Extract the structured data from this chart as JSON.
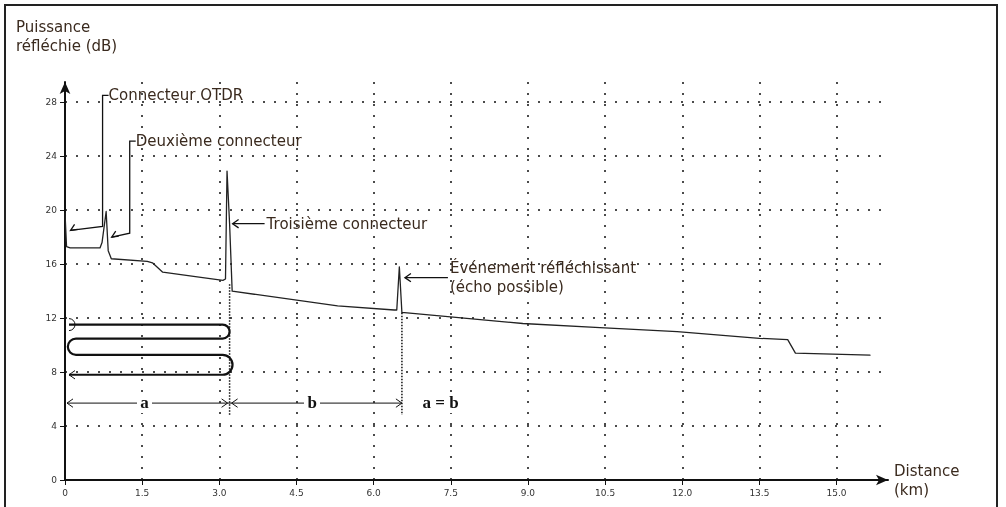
{
  "chart_data": {
    "type": "line",
    "xlabel": "Distance (km)",
    "ylabel": "Puissance réfléchie (dB)",
    "x": [
      0,
      0.03,
      0.1,
      0.68,
      0.72,
      0.8,
      0.84,
      0.9,
      1.6,
      1.7,
      1.9,
      2.5,
      3.07,
      3.12,
      3.15,
      3.2,
      3.25,
      5.3,
      6.4,
      6.45,
      6.5,
      6.55,
      6.6,
      8.9,
      10.4,
      11.9,
      13.5,
      14.05,
      14.2,
      15.65
    ],
    "series": [
      {
        "color": "#222222",
        "values": [
          19.8,
          17.3,
          17.2,
          17.2,
          17.6,
          19.9,
          17.0,
          16.4,
          16.2,
          16.1,
          15.4,
          15.1,
          14.8,
          14.9,
          22.9,
          19.0,
          14.0,
          12.9,
          12.6,
          12.6,
          15.8,
          12.4,
          12.4,
          11.6,
          11.3,
          11.0,
          10.5,
          10.4,
          9.4,
          9.25
        ]
      }
    ],
    "xlim": [
      0,
      16
    ],
    "xticks": [
      {
        "value": 0,
        "label": "0"
      },
      1.5,
      {
        "value": 3,
        "label": "3.0"
      },
      4.5,
      {
        "value": 6,
        "label": "6.0"
      },
      7.5,
      {
        "value": 9,
        "label": "9.0"
      },
      10.5,
      {
        "value": 12,
        "label": "12.0"
      },
      13.5,
      {
        "value": 15,
        "label": "15.0"
      }
    ],
    "ylim": [
      0,
      29.5
    ],
    "yticks": [
      0,
      4,
      8,
      12,
      16,
      20,
      24,
      28
    ],
    "grid": true,
    "marker": "none",
    "line_style": "solid",
    "annotations": [
      {
        "text": "Connecteur OTDR",
        "x": 0.05,
        "y": 18.5
      },
      {
        "text": "Deuxième connecteur",
        "x": 0.85,
        "y": 18
      },
      {
        "text": "Troisième connecteur",
        "x": 3.2,
        "y": 19
      },
      {
        "text": "Événement réfléchissant (écho possible)",
        "x": 6.55,
        "y": 15
      },
      {
        "text": "a",
        "x": 1.55,
        "y": 5.7
      },
      {
        "text": "b",
        "x": 4.8,
        "y": 5.7
      },
      {
        "text": "a = b",
        "x": 7.3,
        "y": 5.7
      }
    ]
  }
}
